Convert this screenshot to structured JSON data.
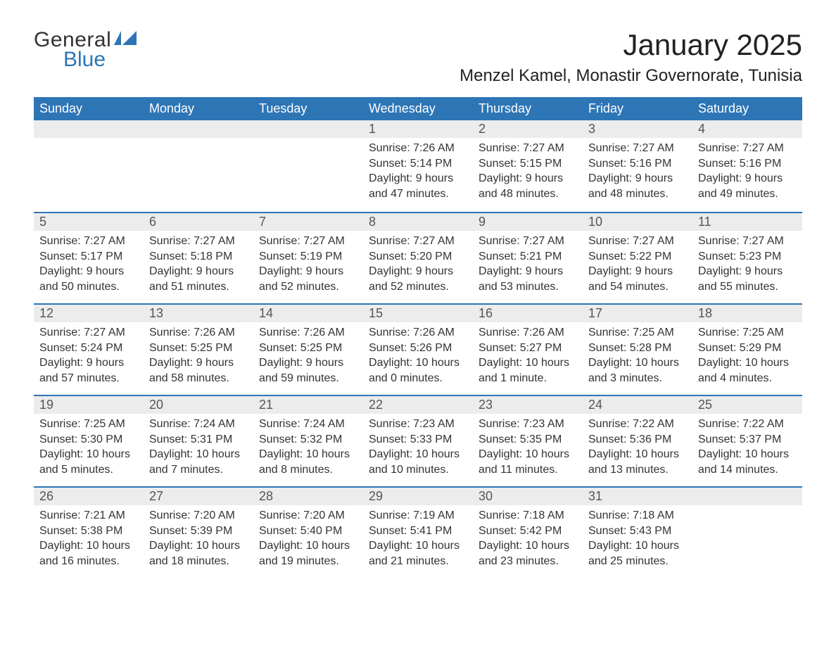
{
  "logo": {
    "text_general": "General",
    "text_blue": "Blue"
  },
  "title": "January 2025",
  "location": "Menzel Kamel, Monastir Governorate, Tunisia",
  "colors": {
    "header_bg": "#2e75b6",
    "header_text": "#ffffff",
    "daynum_bg": "#ececec",
    "border_top": "#2e75b6",
    "body_text": "#333333",
    "logo_blue": "#2e75b6"
  },
  "week_days": [
    "Sunday",
    "Monday",
    "Tuesday",
    "Wednesday",
    "Thursday",
    "Friday",
    "Saturday"
  ],
  "weeks": [
    [
      null,
      null,
      null,
      {
        "n": "1",
        "sunrise": "7:26 AM",
        "sunset": "5:14 PM",
        "daylight": "9 hours and 47 minutes."
      },
      {
        "n": "2",
        "sunrise": "7:27 AM",
        "sunset": "5:15 PM",
        "daylight": "9 hours and 48 minutes."
      },
      {
        "n": "3",
        "sunrise": "7:27 AM",
        "sunset": "5:16 PM",
        "daylight": "9 hours and 48 minutes."
      },
      {
        "n": "4",
        "sunrise": "7:27 AM",
        "sunset": "5:16 PM",
        "daylight": "9 hours and 49 minutes."
      }
    ],
    [
      {
        "n": "5",
        "sunrise": "7:27 AM",
        "sunset": "5:17 PM",
        "daylight": "9 hours and 50 minutes."
      },
      {
        "n": "6",
        "sunrise": "7:27 AM",
        "sunset": "5:18 PM",
        "daylight": "9 hours and 51 minutes."
      },
      {
        "n": "7",
        "sunrise": "7:27 AM",
        "sunset": "5:19 PM",
        "daylight": "9 hours and 52 minutes."
      },
      {
        "n": "8",
        "sunrise": "7:27 AM",
        "sunset": "5:20 PM",
        "daylight": "9 hours and 52 minutes."
      },
      {
        "n": "9",
        "sunrise": "7:27 AM",
        "sunset": "5:21 PM",
        "daylight": "9 hours and 53 minutes."
      },
      {
        "n": "10",
        "sunrise": "7:27 AM",
        "sunset": "5:22 PM",
        "daylight": "9 hours and 54 minutes."
      },
      {
        "n": "11",
        "sunrise": "7:27 AM",
        "sunset": "5:23 PM",
        "daylight": "9 hours and 55 minutes."
      }
    ],
    [
      {
        "n": "12",
        "sunrise": "7:27 AM",
        "sunset": "5:24 PM",
        "daylight": "9 hours and 57 minutes."
      },
      {
        "n": "13",
        "sunrise": "7:26 AM",
        "sunset": "5:25 PM",
        "daylight": "9 hours and 58 minutes."
      },
      {
        "n": "14",
        "sunrise": "7:26 AM",
        "sunset": "5:25 PM",
        "daylight": "9 hours and 59 minutes."
      },
      {
        "n": "15",
        "sunrise": "7:26 AM",
        "sunset": "5:26 PM",
        "daylight": "10 hours and 0 minutes."
      },
      {
        "n": "16",
        "sunrise": "7:26 AM",
        "sunset": "5:27 PM",
        "daylight": "10 hours and 1 minute."
      },
      {
        "n": "17",
        "sunrise": "7:25 AM",
        "sunset": "5:28 PM",
        "daylight": "10 hours and 3 minutes."
      },
      {
        "n": "18",
        "sunrise": "7:25 AM",
        "sunset": "5:29 PM",
        "daylight": "10 hours and 4 minutes."
      }
    ],
    [
      {
        "n": "19",
        "sunrise": "7:25 AM",
        "sunset": "5:30 PM",
        "daylight": "10 hours and 5 minutes."
      },
      {
        "n": "20",
        "sunrise": "7:24 AM",
        "sunset": "5:31 PM",
        "daylight": "10 hours and 7 minutes."
      },
      {
        "n": "21",
        "sunrise": "7:24 AM",
        "sunset": "5:32 PM",
        "daylight": "10 hours and 8 minutes."
      },
      {
        "n": "22",
        "sunrise": "7:23 AM",
        "sunset": "5:33 PM",
        "daylight": "10 hours and 10 minutes."
      },
      {
        "n": "23",
        "sunrise": "7:23 AM",
        "sunset": "5:35 PM",
        "daylight": "10 hours and 11 minutes."
      },
      {
        "n": "24",
        "sunrise": "7:22 AM",
        "sunset": "5:36 PM",
        "daylight": "10 hours and 13 minutes."
      },
      {
        "n": "25",
        "sunrise": "7:22 AM",
        "sunset": "5:37 PM",
        "daylight": "10 hours and 14 minutes."
      }
    ],
    [
      {
        "n": "26",
        "sunrise": "7:21 AM",
        "sunset": "5:38 PM",
        "daylight": "10 hours and 16 minutes."
      },
      {
        "n": "27",
        "sunrise": "7:20 AM",
        "sunset": "5:39 PM",
        "daylight": "10 hours and 18 minutes."
      },
      {
        "n": "28",
        "sunrise": "7:20 AM",
        "sunset": "5:40 PM",
        "daylight": "10 hours and 19 minutes."
      },
      {
        "n": "29",
        "sunrise": "7:19 AM",
        "sunset": "5:41 PM",
        "daylight": "10 hours and 21 minutes."
      },
      {
        "n": "30",
        "sunrise": "7:18 AM",
        "sunset": "5:42 PM",
        "daylight": "10 hours and 23 minutes."
      },
      {
        "n": "31",
        "sunrise": "7:18 AM",
        "sunset": "5:43 PM",
        "daylight": "10 hours and 25 minutes."
      },
      null
    ]
  ],
  "labels": {
    "sunrise": "Sunrise:",
    "sunset": "Sunset:",
    "daylight": "Daylight:"
  }
}
